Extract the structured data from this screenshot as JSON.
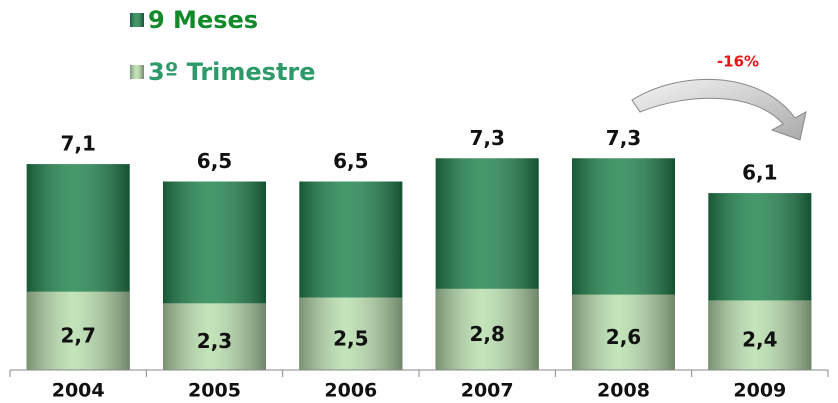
{
  "chart_data": {
    "type": "bar",
    "categories": [
      "2004",
      "2005",
      "2006",
      "2007",
      "2008",
      "2009"
    ],
    "series": [
      {
        "name": "9 Meses",
        "color": "#238650",
        "values": [
          7.1,
          6.5,
          6.5,
          7.3,
          7.3,
          6.1
        ],
        "value_labels": [
          "7,1",
          "6,5",
          "6,5",
          "7,3",
          "7,3",
          "6,1"
        ]
      },
      {
        "name": "3º Trimestre",
        "color": "#b9dfae",
        "values": [
          2.7,
          2.3,
          2.5,
          2.8,
          2.6,
          2.4
        ],
        "value_labels": [
          "2,7",
          "2,3",
          "2,5",
          "2,8",
          "2,6",
          "2,4"
        ]
      }
    ],
    "annotation": "-16%"
  }
}
